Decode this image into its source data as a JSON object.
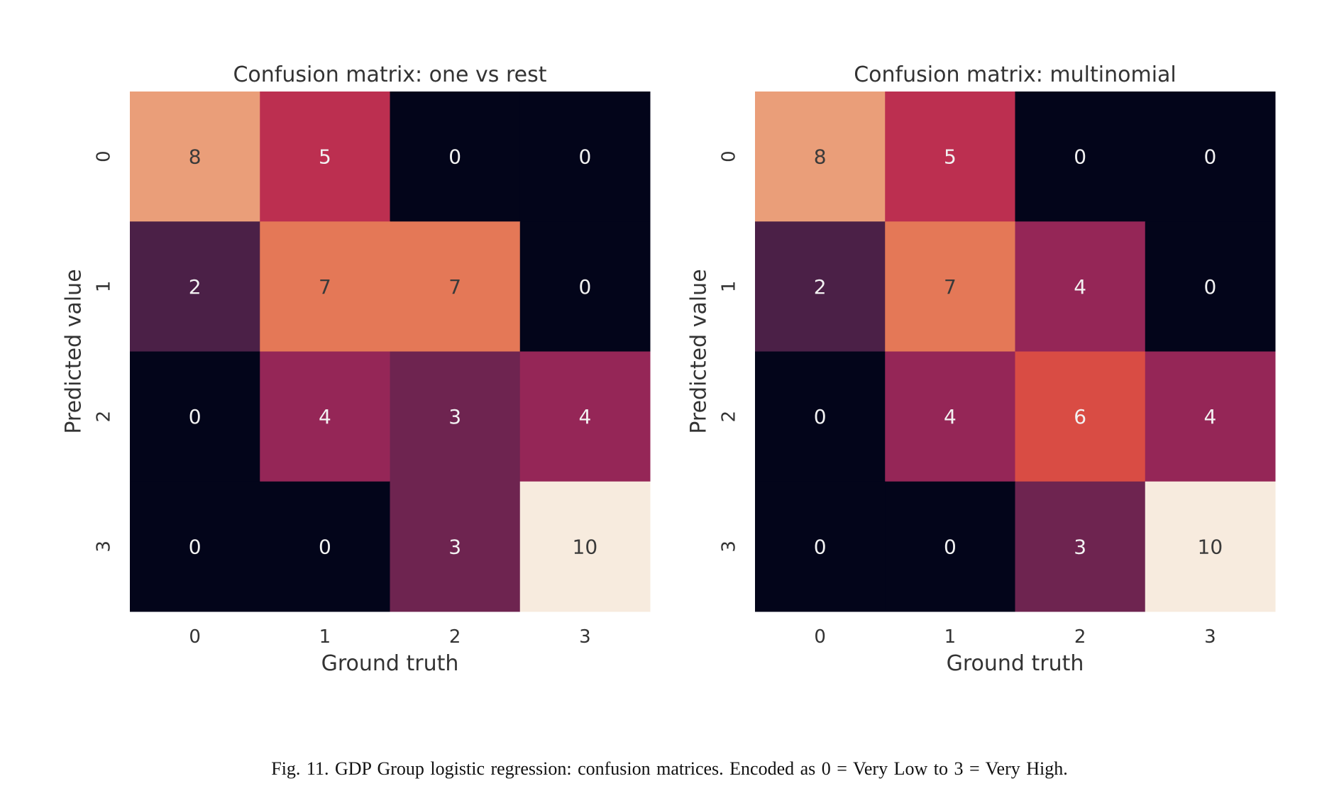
{
  "chart_data": [
    {
      "type": "heatmap",
      "title": "Confusion matrix: one vs rest",
      "xlabel": "Ground truth",
      "ylabel": "Predicted value",
      "x_ticks": [
        "0",
        "1",
        "2",
        "3"
      ],
      "y_ticks": [
        "0",
        "1",
        "2",
        "3"
      ],
      "matrix": [
        [
          8,
          5,
          0,
          0
        ],
        [
          2,
          7,
          7,
          0
        ],
        [
          0,
          4,
          3,
          4
        ],
        [
          0,
          0,
          3,
          10
        ]
      ],
      "value_range": [
        0,
        10
      ],
      "colormap": "rocket",
      "colorbar": false,
      "grid": false
    },
    {
      "type": "heatmap",
      "title": "Confusion matrix: multinomial",
      "xlabel": "Ground truth",
      "ylabel": "Predicted value",
      "x_ticks": [
        "0",
        "1",
        "2",
        "3"
      ],
      "y_ticks": [
        "0",
        "1",
        "2",
        "3"
      ],
      "matrix": [
        [
          8,
          5,
          0,
          0
        ],
        [
          2,
          7,
          4,
          0
        ],
        [
          0,
          4,
          6,
          4
        ],
        [
          0,
          0,
          3,
          10
        ]
      ],
      "value_range": [
        0,
        10
      ],
      "colormap": "rocket",
      "colorbar": false,
      "grid": false
    }
  ],
  "colors": {
    "0": "#03051a",
    "2": "#4b2047",
    "3": "#6e2450",
    "4": "#952657",
    "5": "#bc2f50",
    "6": "#d94c44",
    "7": "#e47857",
    "8": "#ea9e79",
    "10": "#f7ebde",
    "text_dark": "#3a3a3a",
    "text_light": "#f2f2f2"
  },
  "caption": "Fig. 11.  GDP Group logistic regression: confusion matrices. Encoded as 0 = Very Low to 3 = Very High."
}
